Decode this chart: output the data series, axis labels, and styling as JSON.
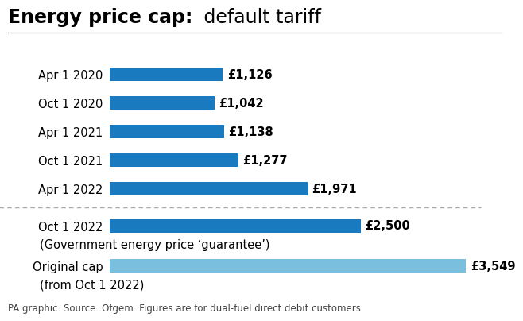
{
  "title_bold": "Energy price cap:",
  "title_normal": " default tariff",
  "labels": [
    "Apr 1 2020",
    "Oct 1 2020",
    "Apr 1 2021",
    "Oct 1 2021",
    "Apr 1 2022",
    "Oct 1 2022",
    "Original cap"
  ],
  "values": [
    1126,
    1042,
    1138,
    1277,
    1971,
    2500,
    3549
  ],
  "value_labels": [
    "£1,126",
    "£1,042",
    "£1,138",
    "£1,277",
    "£1,971",
    "£2,500",
    "£3,549"
  ],
  "bar_colors": [
    "#1a7abf",
    "#1a7abf",
    "#1a7abf",
    "#1a7abf",
    "#1a7abf",
    "#1a7abf",
    "#7bbfdf"
  ],
  "sub_labels": [
    "",
    "",
    "",
    "",
    "",
    "(Government energy price ‘guarantee’)",
    "(from Oct 1 2022)"
  ],
  "max_value": 3700,
  "footnote": "PA graphic. Source: Ofgem. Figures are for dual-fuel direct debit customers",
  "bg_color": "#ffffff",
  "bar_height": 0.48,
  "title_fontsize": 17,
  "label_fontsize": 10.5,
  "value_fontsize": 10.5,
  "footnote_fontsize": 8.5
}
